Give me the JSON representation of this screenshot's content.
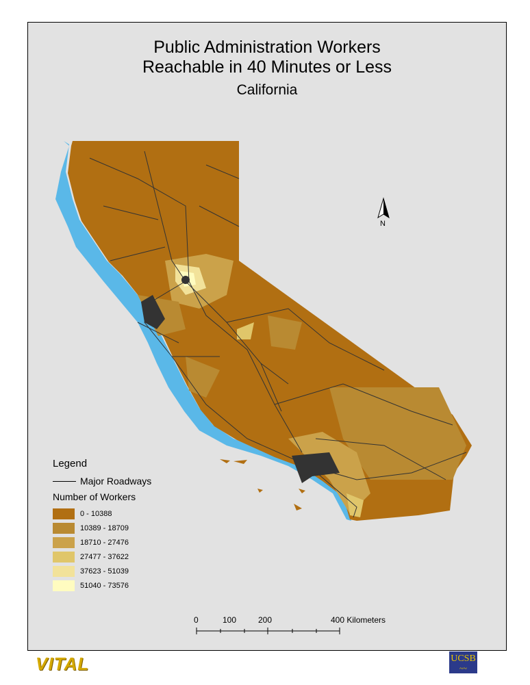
{
  "title_line1": "Public Administration Workers",
  "title_line2": "Reachable in 40 Minutes or Less",
  "subtitle": "California",
  "north_label": "N",
  "legend": {
    "title": "Legend",
    "roadways_label": "Major Roadways",
    "classes_title": "Number of Workers",
    "classes": [
      {
        "label": "0 - 10388",
        "color": "#b16f12"
      },
      {
        "label": "10389 - 18709",
        "color": "#b98a32"
      },
      {
        "label": "18710 - 27476",
        "color": "#cba24a"
      },
      {
        "label": "27477 - 37622",
        "color": "#e0c66a"
      },
      {
        "label": "37623 - 51039",
        "color": "#f2e29a"
      },
      {
        "label": "51040 - 73576",
        "color": "#fffcc0"
      }
    ]
  },
  "scale_bar": {
    "labels": [
      "0",
      "100",
      "200",
      "400 Kilometers"
    ]
  },
  "colors": {
    "water": "#5ab8e8",
    "roads": "#333333",
    "background": "#e2e2e2"
  },
  "logos": {
    "left": "VITAL",
    "right": "UCSB"
  }
}
